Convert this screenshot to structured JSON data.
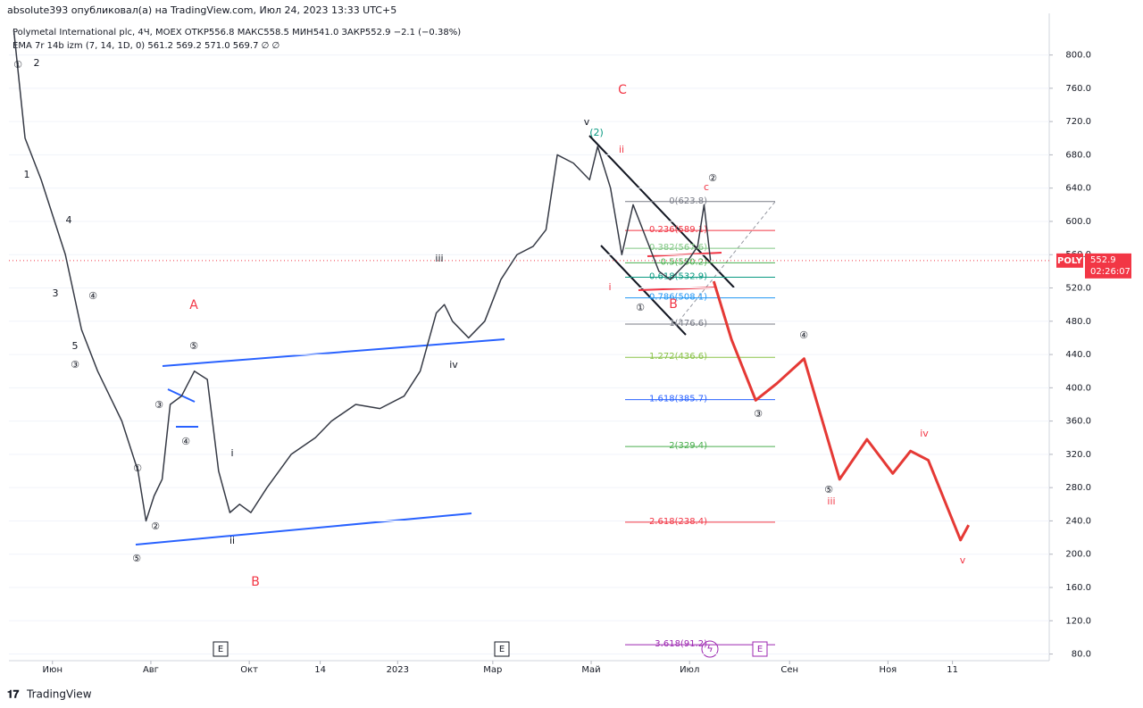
{
  "header": {
    "author": "absolute393 опубликовал(а) на TradingView.com, Июл 24, 2023 13:33 UTC+5",
    "legend": "Polymetal International plc, 4Ч, MOEX ОТКР556.8 МАКС558.5 МИН541.0 ЗАКР552.9 −2.1 (−0.38%)",
    "indicator": "EMA 7r 14b izm (7, 14, 1D, 0) 561.2 569.2 571.0 569.7 ∅ ∅"
  },
  "footer": "TradingView",
  "chart_data": {
    "type": "line",
    "ylim": [
      72,
      850
    ],
    "xlim": [
      125,
      770
    ],
    "yticks": [
      {
        "value": 80,
        "label": "80.0"
      },
      {
        "value": 120,
        "label": "120.0"
      },
      {
        "value": 160,
        "label": "160.0"
      },
      {
        "value": 200,
        "label": "200.0"
      },
      {
        "value": 240,
        "label": "240.0"
      },
      {
        "value": 280,
        "label": "280.0"
      },
      {
        "value": 320,
        "label": "320.0"
      },
      {
        "value": 360,
        "label": "360.0"
      },
      {
        "value": 400,
        "label": "400.0"
      },
      {
        "value": 440,
        "label": "440.0"
      },
      {
        "value": 480,
        "label": "480.0"
      },
      {
        "value": 520,
        "label": "520.0"
      },
      {
        "value": 560,
        "label": "560.0"
      },
      {
        "value": 600,
        "label": "600.0"
      },
      {
        "value": 640,
        "label": "640.0"
      },
      {
        "value": 680,
        "label": "680.0"
      },
      {
        "value": 720,
        "label": "720.0"
      },
      {
        "value": 760,
        "label": "760.0"
      },
      {
        "value": 800,
        "label": "800.0"
      }
    ],
    "xticks": [
      {
        "value": 152,
        "label": "Июн"
      },
      {
        "value": 213,
        "label": "Авг"
      },
      {
        "value": 274,
        "label": "Окт"
      },
      {
        "value": 318,
        "label": "14"
      },
      {
        "value": 366,
        "label": "2023"
      },
      {
        "value": 425,
        "label": "Мар"
      },
      {
        "value": 486,
        "label": "Май"
      },
      {
        "value": 547,
        "label": "Июл"
      },
      {
        "value": 609,
        "label": "Сен"
      },
      {
        "value": 670,
        "label": "Ноя"
      },
      {
        "value": 710,
        "label": "11"
      }
    ],
    "series": [
      {
        "color": "#363a45",
        "x": [
          128,
          135,
          145,
          160,
          170,
          180,
          195,
          205,
          210,
          215,
          220,
          225,
          232,
          240,
          248,
          255,
          262,
          268,
          275,
          285,
          300,
          315,
          325,
          340,
          355,
          370,
          380,
          390,
          395,
          400,
          410,
          420,
          430,
          440,
          450,
          458,
          465,
          475,
          485,
          490,
          498,
          505,
          512,
          520,
          528,
          535,
          545,
          552,
          556,
          560
        ],
        "values": [
          830,
          700,
          650,
          560,
          470,
          420,
          360,
          300,
          240,
          270,
          290,
          380,
          390,
          420,
          410,
          300,
          250,
          260,
          250,
          280,
          320,
          340,
          360,
          380,
          375,
          390,
          420,
          490,
          500,
          480,
          460,
          480,
          530,
          560,
          570,
          590,
          680,
          670,
          650,
          690,
          640,
          560,
          620,
          580,
          540,
          530,
          550,
          570,
          620,
          552.9
        ]
      },
      {
        "color": "#e53935",
        "x": [
          562,
          573,
          588,
          601,
          618,
          640,
          657,
          673,
          684,
          695,
          715,
          720
        ],
        "values": [
          528,
          458,
          385,
          405,
          435,
          290,
          338,
          297,
          324,
          313,
          217,
          235
        ]
      }
    ],
    "current_price": {
      "symbol": "POLY",
      "value": 552.9,
      "label": "552.9",
      "timer": "02:26:07",
      "color": "#f23645"
    },
    "fib": [
      {
        "label": "0(623.8)",
        "value": 623.8,
        "color": "#787b86"
      },
      {
        "label": "0.236(589.1)",
        "value": 589.1,
        "color": "#f23645"
      },
      {
        "label": "0.382(567.6)",
        "value": 567.6,
        "color": "#81c784"
      },
      {
        "label": "0.5(550.2)",
        "value": 550.2,
        "color": "#4caf50"
      },
      {
        "label": "0.618(532.9)",
        "value": 532.9,
        "color": "#089981"
      },
      {
        "label": "0.786(508.1)",
        "value": 508.1,
        "color": "#2196f3"
      },
      {
        "label": "1(476.6)",
        "value": 476.6,
        "color": "#787b86"
      },
      {
        "label": "1.272(436.6)",
        "value": 436.6,
        "color": "#8bc34a"
      },
      {
        "label": "1.618(385.7)",
        "value": 385.7,
        "color": "#2962ff"
      },
      {
        "label": "2(329.4)",
        "value": 329.4,
        "color": "#4caf50"
      },
      {
        "label": "2.618(238.4)",
        "value": 238.4,
        "color": "#f23645"
      },
      {
        "label": "3.618(91.2)",
        "value": 91.2,
        "color": "#9c27b0"
      }
    ],
    "annotations": [
      {
        "text": "①",
        "color": "#131722"
      },
      {
        "text": "2",
        "color": "#131722"
      },
      {
        "text": "1",
        "color": "#131722"
      },
      {
        "text": "4",
        "color": "#131722"
      },
      {
        "text": "3",
        "color": "#131722"
      },
      {
        "text": "④",
        "color": "#131722"
      },
      {
        "text": "5",
        "color": "#131722"
      },
      {
        "text": "③",
        "color": "#131722"
      },
      {
        "text": "A",
        "color": "#f23645"
      },
      {
        "text": "⑤",
        "color": "#131722"
      },
      {
        "text": "③",
        "color": "#131722"
      },
      {
        "text": "④",
        "color": "#131722"
      },
      {
        "text": "①",
        "color": "#131722"
      },
      {
        "text": "②",
        "color": "#131722"
      },
      {
        "text": "⑤",
        "color": "#131722"
      },
      {
        "text": "i",
        "color": "#131722"
      },
      {
        "text": "ii",
        "color": "#131722"
      },
      {
        "text": "B",
        "color": "#f23645"
      },
      {
        "text": "iii",
        "color": "#131722"
      },
      {
        "text": "iv",
        "color": "#131722"
      },
      {
        "text": "C",
        "color": "#f23645"
      },
      {
        "text": "v",
        "color": "#131722"
      },
      {
        "text": "(2)",
        "color": "#089981"
      },
      {
        "text": "ii",
        "color": "#f23645"
      },
      {
        "text": "i",
        "color": "#f23645"
      },
      {
        "text": "①",
        "color": "#131722"
      },
      {
        "text": "②",
        "color": "#131722"
      },
      {
        "text": "c",
        "color": "#f23645"
      },
      {
        "text": "B",
        "color": "#f23645"
      },
      {
        "text": "④",
        "color": "#131722"
      },
      {
        "text": "③",
        "color": "#131722"
      },
      {
        "text": "⑤",
        "color": "#131722"
      },
      {
        "text": "iii",
        "color": "#f23645"
      },
      {
        "text": "iv",
        "color": "#f23645"
      },
      {
        "text": "v",
        "color": "#f23645"
      }
    ],
    "events": [
      "E",
      "E",
      "E"
    ]
  }
}
